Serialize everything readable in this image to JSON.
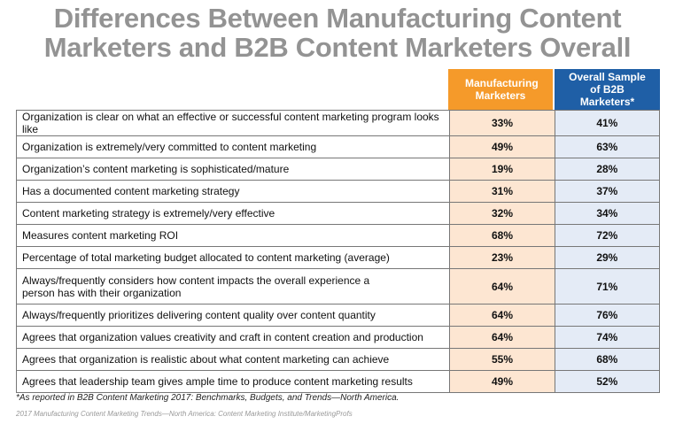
{
  "title_line1": "Differences Between Manufacturing Content",
  "title_line2": "Marketers and B2B Content Marketers Overall",
  "chart_data": {
    "type": "table",
    "columns": [
      "Manufacturing Marketers",
      "Overall Sample of B2B Marketers*"
    ],
    "rows": [
      {
        "label": "Organization is clear on what an effective or successful content marketing program looks like",
        "manufacturing": "33%",
        "overall": "41%"
      },
      {
        "label": "Organization is extremely/very committed to content marketing",
        "manufacturing": "49%",
        "overall": "63%"
      },
      {
        "label": "Organization’s content marketing is sophisticated/mature",
        "manufacturing": "19%",
        "overall": "28%"
      },
      {
        "label": "Has a documented content marketing strategy",
        "manufacturing": "31%",
        "overall": "37%"
      },
      {
        "label": "Content marketing strategy is extremely/very effective",
        "manufacturing": "32%",
        "overall": "34%"
      },
      {
        "label": "Measures content marketing ROI",
        "manufacturing": "68%",
        "overall": "72%"
      },
      {
        "label": "Percentage of total marketing budget allocated to content marketing (average)",
        "manufacturing": "23%",
        "overall": "29%"
      },
      {
        "label": "Always/frequently considers how content impacts the overall experience a person has with their organization",
        "manufacturing": "64%",
        "overall": "71%"
      },
      {
        "label": "Always/frequently prioritizes delivering content quality over content quantity",
        "manufacturing": "64%",
        "overall": "76%"
      },
      {
        "label": "Agrees that organization values creativity and craft in content creation and production",
        "manufacturing": "64%",
        "overall": "74%"
      },
      {
        "label": "Agrees that organization is realistic about what content marketing can achieve",
        "manufacturing": "55%",
        "overall": "68%"
      },
      {
        "label": "Agrees that leadership team gives ample time to produce content marketing results",
        "manufacturing": "49%",
        "overall": "52%"
      }
    ],
    "colors": {
      "manufacturing_header": "#f59a2a",
      "overall_header": "#1f5fa6",
      "manufacturing_cell": "#fde6d2",
      "overall_cell": "#e4ebf6"
    }
  },
  "footnote": "*As reported in B2B Content Marketing 2017: Benchmarks, Budgets, and Trends—North America.",
  "source": "2017 Manufacturing Content Marketing Trends—North America: Content Marketing Institute/MarketingProfs"
}
